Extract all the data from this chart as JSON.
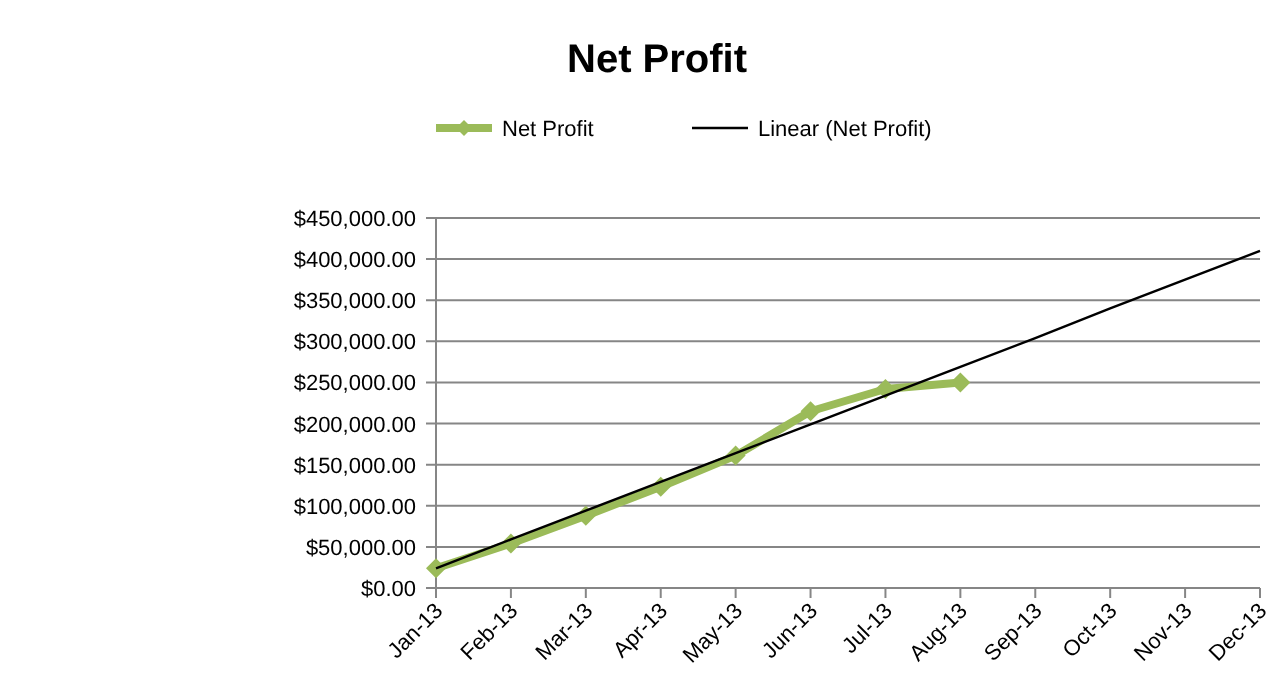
{
  "chart_data": {
    "type": "line",
    "title": "Net Profit",
    "categories": [
      "Jan-13",
      "Feb-13",
      "Mar-13",
      "Apr-13",
      "May-13",
      "Jun-13",
      "Jul-13",
      "Aug-13",
      "Sep-13",
      "Oct-13",
      "Nov-13",
      "Dec-13"
    ],
    "series": [
      {
        "name": "Net Profit",
        "color": "#9bbb59",
        "marker": "diamond",
        "values": [
          24000,
          54000,
          88000,
          123000,
          161000,
          215000,
          242000,
          250000,
          null,
          null,
          null,
          null
        ]
      },
      {
        "name": "Linear (Net Profit)",
        "color": "#000000",
        "marker": "none",
        "values": [
          24000,
          59000,
          94000,
          129000,
          164000,
          199000,
          234000,
          269000,
          304000,
          340000,
          375000,
          410000
        ]
      }
    ],
    "ylim": [
      0,
      450000
    ],
    "yticks": [
      {
        "value": 0,
        "label": "$0.00"
      },
      {
        "value": 50000,
        "label": "$50,000.00"
      },
      {
        "value": 100000,
        "label": "$100,000.00"
      },
      {
        "value": 150000,
        "label": "$150,000.00"
      },
      {
        "value": 200000,
        "label": "$200,000.00"
      },
      {
        "value": 250000,
        "label": "$250,000.00"
      },
      {
        "value": 300000,
        "label": "$300,000.00"
      },
      {
        "value": 350000,
        "label": "$350,000.00"
      },
      {
        "value": 400000,
        "label": "$400,000.00"
      },
      {
        "value": 450000,
        "label": "$450,000.00"
      }
    ],
    "grid": "y",
    "legend": "top",
    "line_style": "solid"
  }
}
